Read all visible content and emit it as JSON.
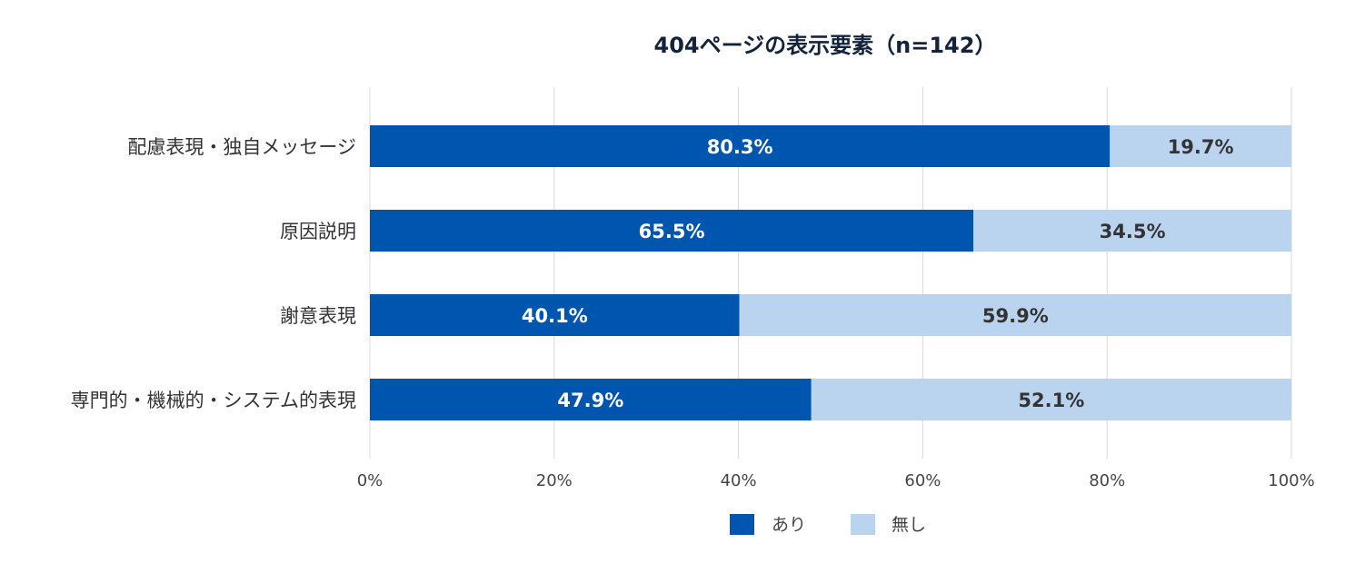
{
  "chart_data": {
    "type": "bar",
    "orientation": "horizontal",
    "stacked": true,
    "title": "404ページの表示要素（n=142）",
    "categories": [
      "配慮表現・独自メッセージ",
      "原因説明",
      "謝意表現",
      "専門的・機械的・システム的表現"
    ],
    "series": [
      {
        "name": "あり",
        "color": "#0055ae",
        "values": [
          80.3,
          65.5,
          40.1,
          47.9
        ],
        "labels": [
          "80.3%",
          "65.5%",
          "40.1%",
          "47.9%"
        ]
      },
      {
        "name": "無し",
        "color": "#bad4f0",
        "values": [
          19.7,
          34.5,
          59.9,
          52.1
        ],
        "labels": [
          "19.7%",
          "34.5%",
          "59.9%",
          "52.1%"
        ]
      }
    ],
    "xlim": [
      0,
      100
    ],
    "xticks": [
      "0%",
      "20%",
      "40%",
      "60%",
      "80%",
      "100%"
    ],
    "grid": true,
    "legend_position": "bottom"
  }
}
